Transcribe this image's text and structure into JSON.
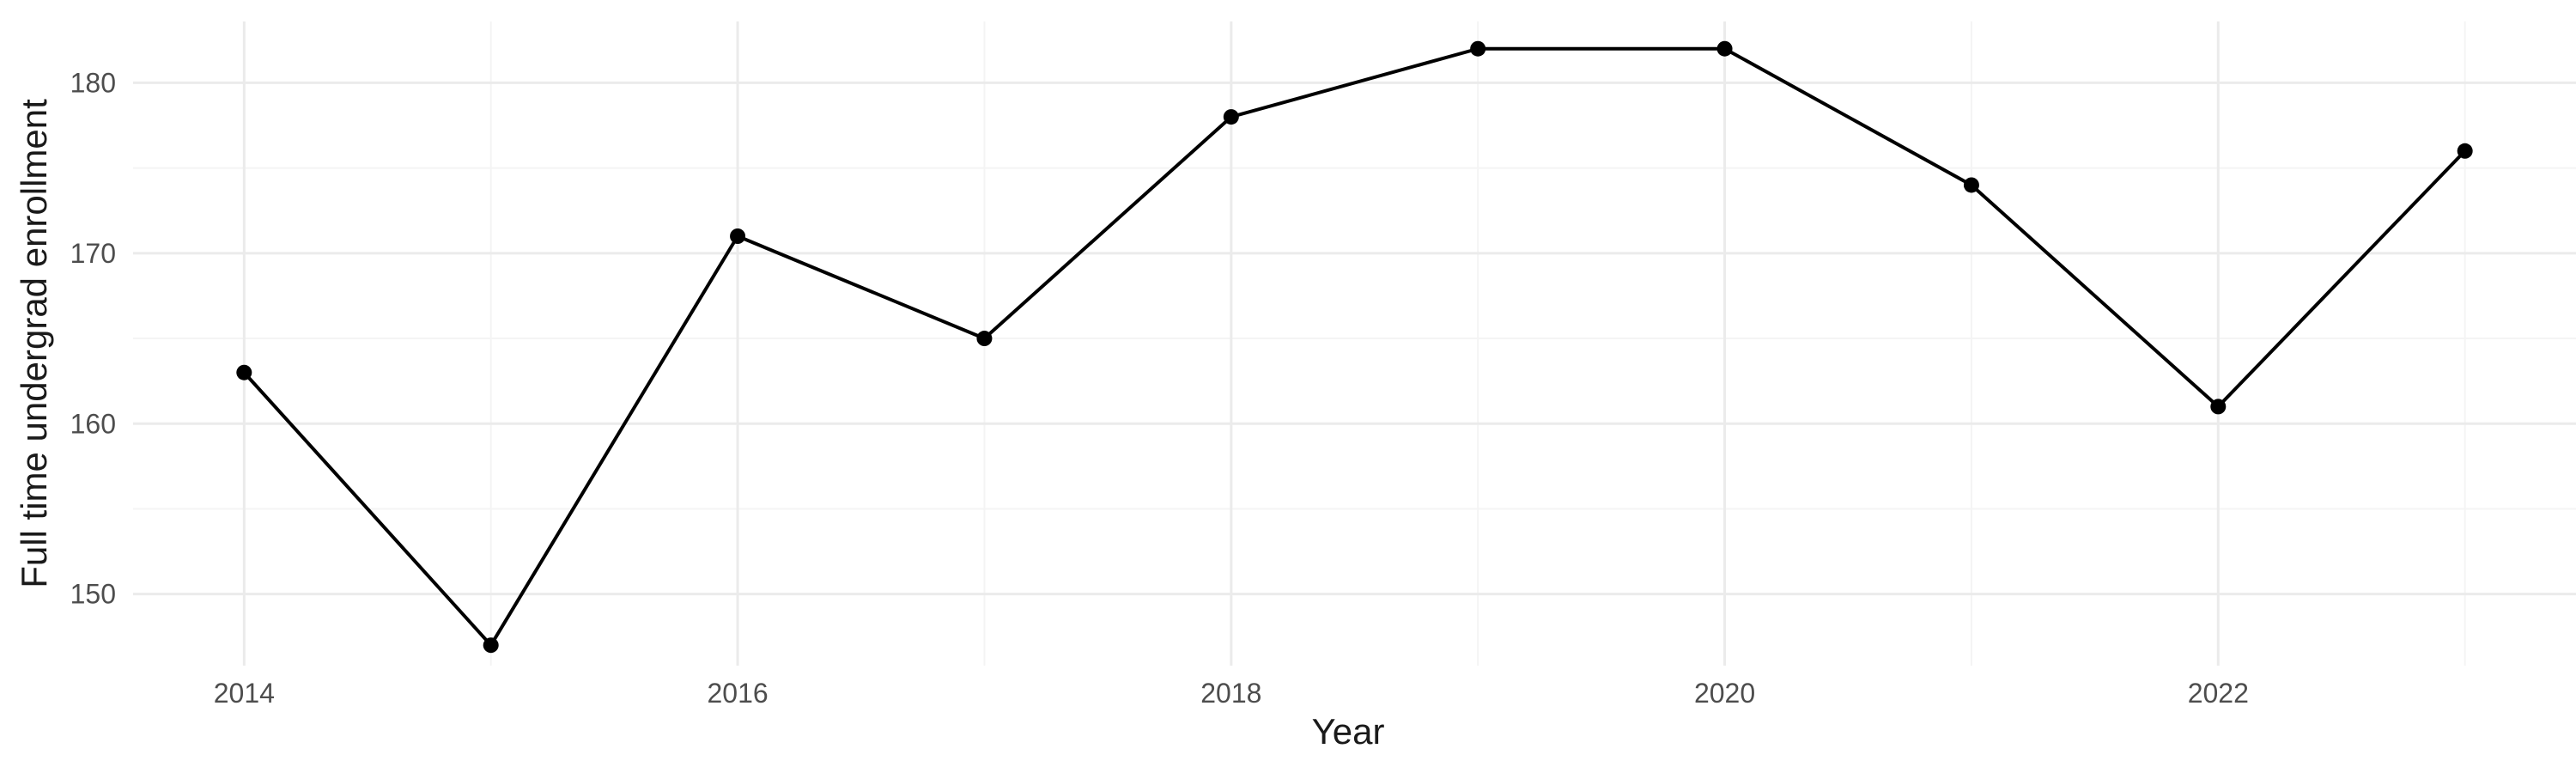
{
  "chart_data": {
    "type": "line",
    "title": "",
    "xlabel": "Year",
    "ylabel": "Full time undergrad enrollment",
    "x": [
      2014,
      2015,
      2016,
      2017,
      2018,
      2019,
      2020,
      2021,
      2022,
      2023
    ],
    "series": [
      {
        "values": [
          163,
          147,
          171,
          165,
          178,
          182,
          182,
          174,
          161,
          176
        ]
      }
    ],
    "xlim": [
      2013.55,
      2023.45
    ],
    "ylim": [
      145.8,
      183.6
    ],
    "x_ticks": [
      2014,
      2016,
      2018,
      2020,
      2022
    ],
    "x_tick_labels": [
      "2014",
      "2016",
      "2018",
      "2020",
      "2022"
    ],
    "x_minor_ticks": [
      2015,
      2017,
      2019,
      2021,
      2023
    ],
    "y_ticks": [
      150,
      160,
      170,
      180
    ],
    "y_tick_labels": [
      "150",
      "160",
      "170",
      "180"
    ],
    "y_minor_ticks": [
      155,
      165,
      175
    ],
    "grid": true,
    "legend": "none",
    "colors": {
      "line": "#000000",
      "point": "#000000",
      "grid_major": "#ebebeb",
      "grid_minor": "#f4f4f4",
      "tick_text": "#4d4d4d",
      "title_text": "#1a1a1a"
    }
  }
}
